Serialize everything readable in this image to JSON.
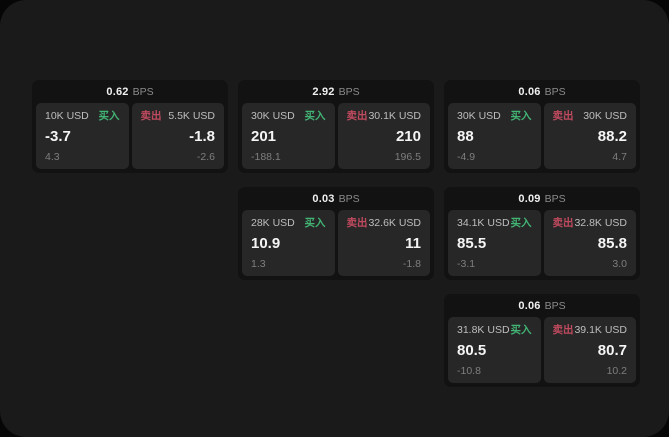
{
  "labels": {
    "bps_unit": "BPS",
    "buy": "买入",
    "sell": "卖出"
  },
  "colors": {
    "page_bg": "#060606",
    "surface_bg": "#1a1a1b",
    "card_bg": "#121213",
    "panel_bg": "#272728",
    "buy_green": "#42b473",
    "sell_red": "#c04a5e"
  },
  "cards": [
    {
      "bps": "0.62",
      "buy": {
        "size": "10K USD",
        "price": "-3.7",
        "delta": "4.3"
      },
      "sell": {
        "size": "5.5K USD",
        "price": "-1.8",
        "delta": "-2.6"
      }
    },
    {
      "bps": "2.92",
      "buy": {
        "size": "30K USD",
        "price": "201",
        "delta": "-188.1"
      },
      "sell": {
        "size": "30.1K USD",
        "price": "210",
        "delta": "196.5"
      }
    },
    {
      "bps": "0.06",
      "buy": {
        "size": "30K USD",
        "price": "88",
        "delta": "-4.9"
      },
      "sell": {
        "size": "30K USD",
        "price": "88.2",
        "delta": "4.7"
      }
    },
    {
      "bps": "0.03",
      "buy": {
        "size": "28K USD",
        "price": "10.9",
        "delta": "1.3"
      },
      "sell": {
        "size": "32.6K USD",
        "price": "11",
        "delta": "-1.8"
      }
    },
    {
      "bps": "0.09",
      "buy": {
        "size": "34.1K USD",
        "price": "85.5",
        "delta": "-3.1"
      },
      "sell": {
        "size": "32.8K USD",
        "price": "85.8",
        "delta": "3.0"
      }
    },
    {
      "bps": "0.06",
      "buy": {
        "size": "31.8K USD",
        "price": "80.5",
        "delta": "-10.8"
      },
      "sell": {
        "size": "39.1K USD",
        "price": "80.7",
        "delta": "10.2"
      }
    }
  ]
}
